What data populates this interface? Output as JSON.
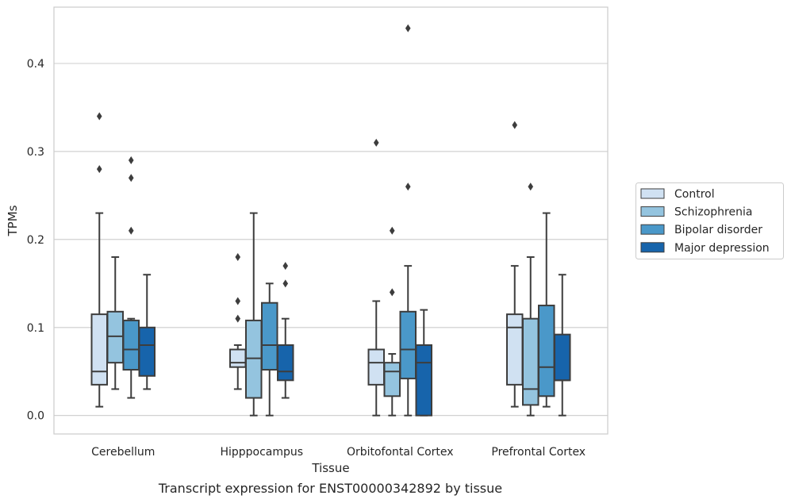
{
  "caption": "Transcript expression for ENST00000342892 by tissue",
  "chart_data": {
    "type": "box",
    "xlabel": "Tissue",
    "ylabel": "TPMs",
    "ylim": [
      -0.021,
      0.464
    ],
    "yticks": [
      0.0,
      0.1,
      0.2,
      0.3,
      0.4
    ],
    "ytick_labels": [
      "0.0",
      "0.1",
      "0.2",
      "0.3",
      "0.4"
    ],
    "grid": "horizontal",
    "legend_position": "right",
    "categories": [
      "Cerebellum",
      "Hipppocampus",
      "Orbitofontal Cortex",
      "Prefrontal Cortex"
    ],
    "series": [
      {
        "name": "Control",
        "color": "#d0e1f2",
        "boxes": [
          {
            "whislo": 0.01,
            "q1": 0.035,
            "med": 0.05,
            "q3": 0.115,
            "whishi": 0.23,
            "fliers": [
              0.28,
              0.34
            ]
          },
          {
            "whislo": 0.03,
            "q1": 0.055,
            "med": 0.06,
            "q3": 0.075,
            "whishi": 0.08,
            "fliers": [
              0.11,
              0.13,
              0.18
            ]
          },
          {
            "whislo": 0.0,
            "q1": 0.035,
            "med": 0.06,
            "q3": 0.075,
            "whishi": 0.13,
            "fliers": [
              0.31
            ]
          },
          {
            "whislo": 0.01,
            "q1": 0.035,
            "med": 0.1,
            "q3": 0.115,
            "whishi": 0.17,
            "fliers": [
              0.33
            ]
          }
        ]
      },
      {
        "name": "Schizophrenia",
        "color": "#94c4df",
        "boxes": [
          {
            "whislo": 0.03,
            "q1": 0.06,
            "med": 0.09,
            "q3": 0.118,
            "whishi": 0.18,
            "fliers": []
          },
          {
            "whislo": 0.0,
            "q1": 0.02,
            "med": 0.065,
            "q3": 0.108,
            "whishi": 0.23,
            "fliers": []
          },
          {
            "whislo": 0.0,
            "q1": 0.022,
            "med": 0.05,
            "q3": 0.06,
            "whishi": 0.07,
            "fliers": [
              0.14,
              0.21
            ]
          },
          {
            "whislo": 0.0,
            "q1": 0.012,
            "med": 0.03,
            "q3": 0.11,
            "whishi": 0.18,
            "fliers": [
              0.26
            ]
          }
        ]
      },
      {
        "name": "Bipolar disorder",
        "color": "#4a98c9",
        "boxes": [
          {
            "whislo": 0.02,
            "q1": 0.052,
            "med": 0.075,
            "q3": 0.108,
            "whishi": 0.11,
            "fliers": [
              0.21,
              0.27,
              0.29
            ]
          },
          {
            "whislo": 0.0,
            "q1": 0.052,
            "med": 0.08,
            "q3": 0.128,
            "whishi": 0.15,
            "fliers": []
          },
          {
            "whislo": 0.0,
            "q1": 0.042,
            "med": 0.075,
            "q3": 0.118,
            "whishi": 0.17,
            "fliers": [
              0.26,
              0.44
            ]
          },
          {
            "whislo": 0.01,
            "q1": 0.022,
            "med": 0.055,
            "q3": 0.125,
            "whishi": 0.23,
            "fliers": []
          }
        ]
      },
      {
        "name": "Major depression",
        "color": "#1764ab",
        "boxes": [
          {
            "whislo": 0.03,
            "q1": 0.045,
            "med": 0.08,
            "q3": 0.1,
            "whishi": 0.16,
            "fliers": []
          },
          {
            "whislo": 0.02,
            "q1": 0.04,
            "med": 0.05,
            "q3": 0.08,
            "whishi": 0.11,
            "fliers": [
              0.15,
              0.17
            ]
          },
          {
            "whislo": 0.0,
            "q1": 0.0,
            "med": 0.06,
            "q3": 0.08,
            "whishi": 0.12,
            "fliers": []
          },
          {
            "whislo": 0.0,
            "q1": 0.04,
            "med": 0.04,
            "q3": 0.092,
            "whishi": 0.16,
            "fliers": []
          }
        ]
      }
    ]
  }
}
